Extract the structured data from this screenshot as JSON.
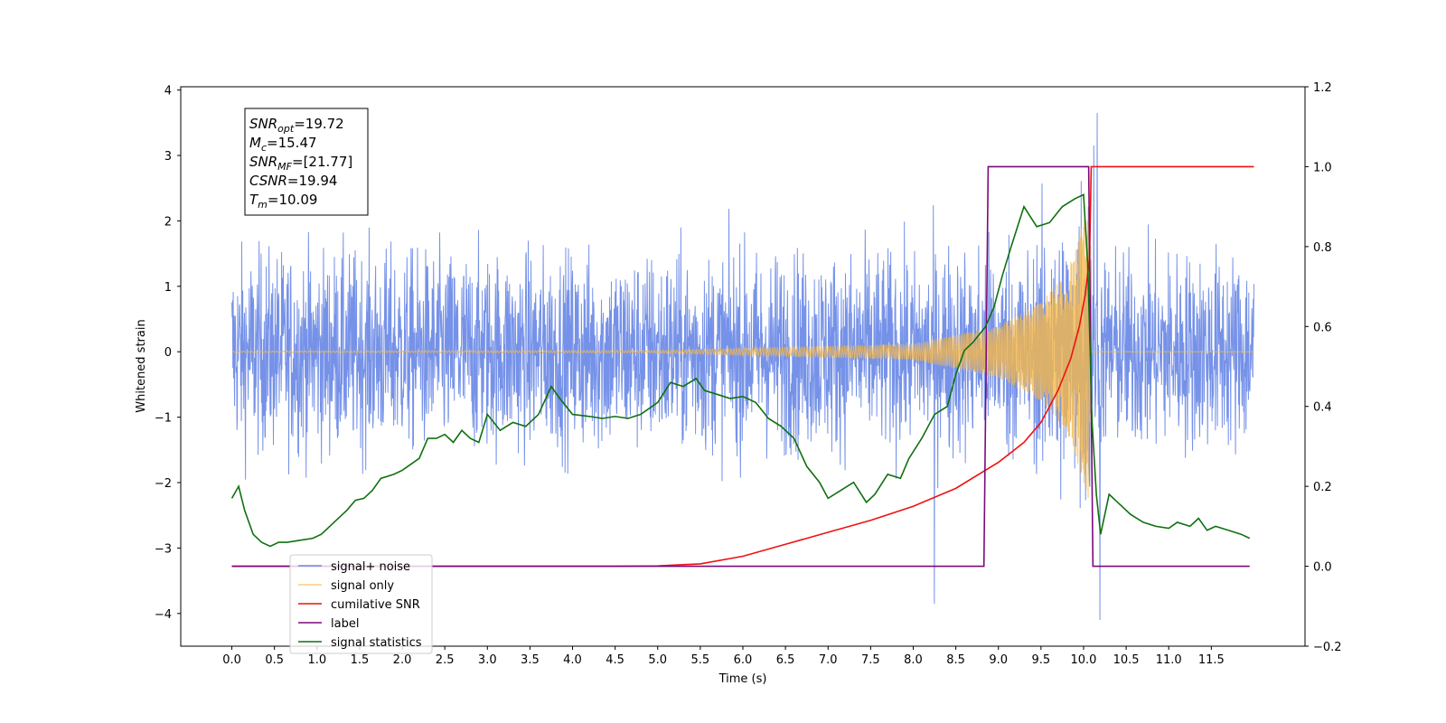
{
  "chart_data": {
    "type": "line",
    "xlabel": "Time (s)",
    "ylabel": "Whitened strain",
    "xlim": [
      -0.6,
      12.6
    ],
    "ylim": [
      -4.5,
      4.05
    ],
    "y2lim": [
      -0.2,
      1.2
    ],
    "grid": false,
    "xticks": [
      "0.0",
      "0.5",
      "1.0",
      "1.5",
      "2.0",
      "2.5",
      "3.0",
      "3.5",
      "4.0",
      "4.5",
      "5.0",
      "5.5",
      "6.0",
      "6.5",
      "7.0",
      "7.5",
      "8.0",
      "8.5",
      "9.0",
      "9.5",
      "10.0",
      "10.5",
      "11.0",
      "11.5"
    ],
    "yticks": [
      "4",
      "3",
      "2",
      "1",
      "0",
      "−1",
      "−2",
      "−3",
      "−4"
    ],
    "y2ticks": [
      "1.2",
      "1.0",
      "0.8",
      "0.6",
      "0.4",
      "0.2",
      "0.0",
      "−0.2"
    ],
    "info_box": [
      {
        "main": "SNR",
        "sub": "opt",
        "value": "=19.72"
      },
      {
        "main": "M",
        "sub": "c",
        "value": "=15.47"
      },
      {
        "main": "SNR",
        "sub": "MF",
        "value": "=[21.77]"
      },
      {
        "main": "CSNR",
        "sub": "",
        "value": "=19.94"
      },
      {
        "main": "T",
        "sub": "m",
        "value": "=10.09"
      }
    ],
    "legend_position": "lower-left",
    "noise": {
      "x_start": 0.0,
      "x_end": 12.0,
      "envelope_typical": 1.4,
      "peak": 3.65,
      "trough": -4.1
    },
    "series": [
      {
        "name": "signal+ noise",
        "color": "#6a89e6",
        "axis": "left",
        "kind": "noise"
      },
      {
        "name": "signal only",
        "color": "#f5b84a",
        "axis": "left",
        "kind": "chirp",
        "x_end": 10.09,
        "amplitude_points": [
          [
            0,
            0.01
          ],
          [
            5,
            0.02
          ],
          [
            8,
            0.12
          ],
          [
            9,
            0.4
          ],
          [
            9.5,
            0.75
          ],
          [
            9.8,
            1.2
          ],
          [
            10.0,
            2.0
          ],
          [
            10.09,
            2.4
          ]
        ]
      },
      {
        "name": "cumilative SNR",
        "color": "#ee1111",
        "axis": "right",
        "x": [
          0,
          4.5,
          5.0,
          5.5,
          6.0,
          6.5,
          7.0,
          7.5,
          8.0,
          8.5,
          9.0,
          9.3,
          9.5,
          9.7,
          9.85,
          9.95,
          10.02,
          10.07,
          10.09,
          10.11,
          12.0
        ],
        "y": [
          0,
          0,
          0.001,
          0.006,
          0.025,
          0.055,
          0.085,
          0.115,
          0.15,
          0.195,
          0.26,
          0.31,
          0.36,
          0.44,
          0.52,
          0.6,
          0.68,
          0.77,
          1.0,
          1.0,
          1.0
        ]
      },
      {
        "name": "label",
        "color": "#7a0a7a",
        "axis": "right",
        "x": [
          0,
          8.83,
          8.88,
          10.06,
          10.11,
          11.95
        ],
        "y": [
          0,
          0,
          1,
          1,
          0,
          0
        ]
      },
      {
        "name": "signal statistics",
        "color": "#107010",
        "axis": "right",
        "x": [
          0,
          0.08,
          0.15,
          0.25,
          0.35,
          0.45,
          0.55,
          0.65,
          0.8,
          0.95,
          1.05,
          1.2,
          1.35,
          1.45,
          1.55,
          1.65,
          1.75,
          1.9,
          2.0,
          2.1,
          2.2,
          2.3,
          2.4,
          2.5,
          2.6,
          2.7,
          2.8,
          2.9,
          3.0,
          3.15,
          3.3,
          3.45,
          3.6,
          3.75,
          3.85,
          4.0,
          4.2,
          4.35,
          4.5,
          4.65,
          4.8,
          5.0,
          5.15,
          5.3,
          5.45,
          5.55,
          5.7,
          5.85,
          6.0,
          6.15,
          6.3,
          6.45,
          6.6,
          6.75,
          6.9,
          7.0,
          7.15,
          7.3,
          7.45,
          7.55,
          7.7,
          7.85,
          7.95,
          8.1,
          8.25,
          8.4,
          8.5,
          8.6,
          8.7,
          8.85,
          8.95,
          9.05,
          9.15,
          9.3,
          9.45,
          9.6,
          9.75,
          9.9,
          10.0,
          10.05,
          10.1,
          10.15,
          10.2,
          10.3,
          10.4,
          10.55,
          10.7,
          10.85,
          11.0,
          11.1,
          11.25,
          11.35,
          11.45,
          11.55,
          11.7,
          11.85,
          11.95
        ],
        "y": [
          0.17,
          0.2,
          0.14,
          0.08,
          0.06,
          0.05,
          0.06,
          0.06,
          0.065,
          0.07,
          0.08,
          0.11,
          0.14,
          0.165,
          0.17,
          0.19,
          0.22,
          0.23,
          0.24,
          0.255,
          0.27,
          0.32,
          0.32,
          0.33,
          0.31,
          0.34,
          0.32,
          0.31,
          0.38,
          0.34,
          0.36,
          0.35,
          0.38,
          0.45,
          0.42,
          0.38,
          0.375,
          0.37,
          0.375,
          0.37,
          0.38,
          0.41,
          0.46,
          0.45,
          0.47,
          0.44,
          0.43,
          0.42,
          0.425,
          0.41,
          0.37,
          0.35,
          0.32,
          0.25,
          0.21,
          0.17,
          0.19,
          0.21,
          0.16,
          0.18,
          0.23,
          0.22,
          0.27,
          0.32,
          0.38,
          0.4,
          0.48,
          0.54,
          0.56,
          0.6,
          0.65,
          0.73,
          0.8,
          0.9,
          0.85,
          0.86,
          0.9,
          0.92,
          0.93,
          0.75,
          0.36,
          0.18,
          0.08,
          0.18,
          0.16,
          0.13,
          0.11,
          0.1,
          0.095,
          0.11,
          0.1,
          0.12,
          0.09,
          0.1,
          0.09,
          0.08,
          0.07
        ]
      }
    ]
  }
}
